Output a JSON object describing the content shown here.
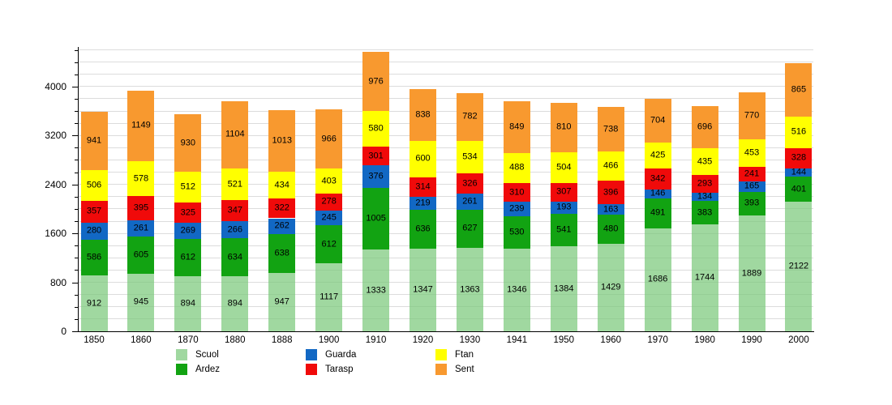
{
  "chart_data": {
    "type": "bar",
    "stacked": true,
    "title": "",
    "xlabel": "",
    "ylabel": "",
    "categories": [
      "1850",
      "1860",
      "1870",
      "1880",
      "1888",
      "1900",
      "1910",
      "1920",
      "1930",
      "1941",
      "1950",
      "1960",
      "1970",
      "1980",
      "1990",
      "2000"
    ],
    "series": [
      {
        "name": "Scuol",
        "color": "rgba(120,200,120,0.7)",
        "values": [
          912,
          945,
          894,
          894,
          947,
          1117,
          1333,
          1347,
          1363,
          1346,
          1384,
          1429,
          1686,
          1744,
          1889,
          2122
        ]
      },
      {
        "name": "Ardez",
        "color": "#12A312",
        "values": [
          586,
          605,
          612,
          634,
          638,
          612,
          1005,
          636,
          627,
          530,
          541,
          480,
          491,
          383,
          393,
          401
        ]
      },
      {
        "name": "Guarda",
        "color": "#1268C4",
        "values": [
          280,
          261,
          269,
          266,
          262,
          245,
          376,
          219,
          261,
          239,
          193,
          163,
          146,
          134,
          165,
          144
        ]
      },
      {
        "name": "Tarasp",
        "color": "#F00A0A",
        "values": [
          357,
          395,
          325,
          347,
          322,
          278,
          301,
          314,
          326,
          310,
          307,
          396,
          342,
          293,
          241,
          328
        ]
      },
      {
        "name": "Ftan",
        "color": "#FFFF00",
        "values": [
          506,
          578,
          512,
          521,
          434,
          403,
          580,
          600,
          534,
          488,
          504,
          466,
          425,
          435,
          453,
          516
        ]
      },
      {
        "name": "Sent",
        "color": "#F8992F",
        "values": [
          941,
          1149,
          930,
          1104,
          1013,
          966,
          976,
          838,
          782,
          849,
          810,
          738,
          704,
          696,
          770,
          865
        ]
      }
    ],
    "y_axis": {
      "major_ticks": [
        0,
        800,
        1600,
        2400,
        3200,
        4000
      ],
      "minor_step": 200,
      "max_gridline": 4600,
      "scale_max": 4620
    },
    "grid": true,
    "gridline_color": "#dcdcdc",
    "legend_position": "bottom",
    "legend_columns": [
      [
        "Scuol",
        "Ardez"
      ],
      [
        "Guarda",
        "Tarasp"
      ],
      [
        "Ftan",
        "Sent"
      ]
    ],
    "value_labels_shown": true
  }
}
